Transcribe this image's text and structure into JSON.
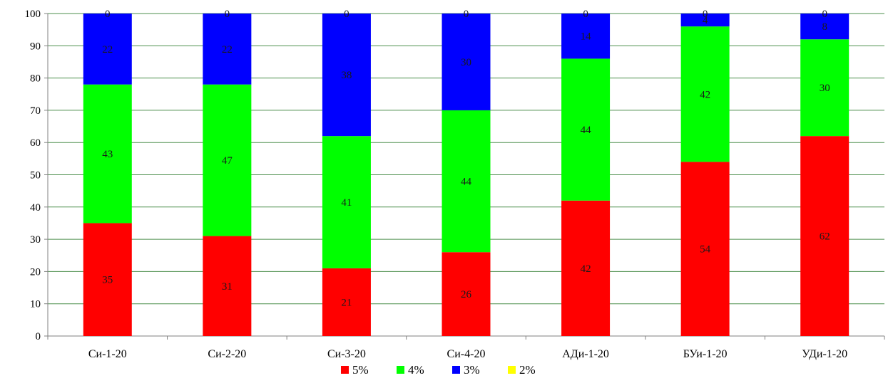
{
  "chart_data": {
    "type": "bar",
    "stacked": true,
    "categories": [
      "Си-1-20",
      "Си-2-20",
      "Си-3-20",
      "Си-4-20",
      "АДи-1-20",
      "БУи-1-20",
      "УДи-1-20"
    ],
    "series": [
      {
        "name": "5%",
        "color": "#ff0000",
        "values": [
          35,
          31,
          21,
          26,
          42,
          54,
          62
        ]
      },
      {
        "name": "4%",
        "color": "#00ff00",
        "values": [
          43,
          47,
          41,
          44,
          44,
          42,
          30
        ]
      },
      {
        "name": "3%",
        "color": "#0000ff",
        "values": [
          22,
          22,
          38,
          30,
          14,
          4,
          8
        ]
      },
      {
        "name": "2%",
        "color": "#ffff00",
        "values": [
          0,
          0,
          0,
          0,
          0,
          0,
          0
        ]
      }
    ],
    "ylim": [
      0,
      100
    ],
    "yticks": [
      0,
      10,
      20,
      30,
      40,
      50,
      60,
      70,
      80,
      90,
      100
    ],
    "grid": true,
    "legend_position": "bottom",
    "title": "",
    "xlabel": "",
    "ylabel": ""
  }
}
